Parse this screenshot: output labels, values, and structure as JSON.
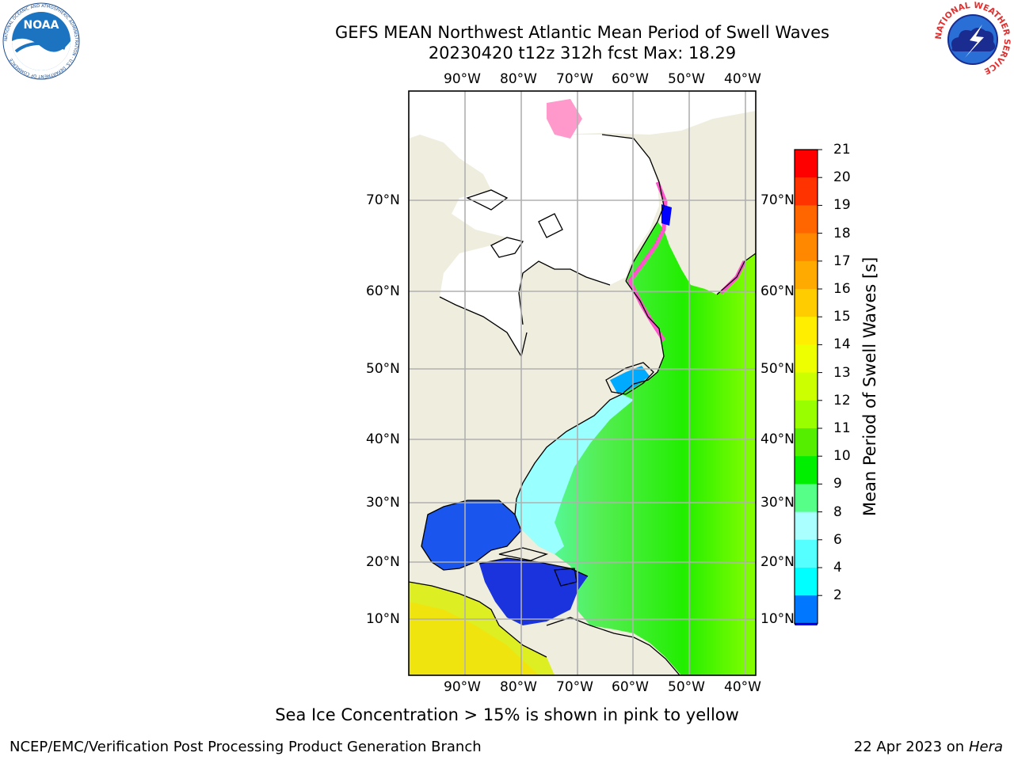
{
  "title": {
    "line1": "GEFS MEAN Northwest Atlantic Mean Period of Swell Waves",
    "line2": "20230420 t12z 312h fcst   Max: 18.29"
  },
  "map": {
    "lon_labels": [
      "90°W",
      "80°W",
      "70°W",
      "60°W",
      "50°W",
      "40°W"
    ],
    "lat_labels": [
      "70°N",
      "60°N",
      "50°N",
      "40°N",
      "30°N",
      "20°N",
      "10°N"
    ],
    "colors": {
      "land": "#efedde",
      "ice": "#ff66cc",
      "frame": "#000000",
      "grid": "#b0b0b0"
    }
  },
  "colorbar": {
    "title": "Mean Period of Swell Waves [s]",
    "labels": [
      "21",
      "20",
      "19",
      "18",
      "17",
      "16",
      "15",
      "14",
      "13",
      "12",
      "11",
      "10",
      "9",
      "8",
      "6",
      "4",
      "2"
    ],
    "colors": [
      "#ff0000",
      "#ff3300",
      "#ff6600",
      "#ff8800",
      "#ffaa00",
      "#ffcc00",
      "#ffee00",
      "#eeff00",
      "#ccff00",
      "#99ff00",
      "#55ee00",
      "#00ee00",
      "#55ff88",
      "#aaffff",
      "#55ffff",
      "#00ffff",
      "#0077ff"
    ],
    "under_color": "#0000ff"
  },
  "footer": {
    "note": "Sea Ice Concentration > 15% is shown in pink to yellow",
    "credit": "NCEP/EMC/Verification Post Processing Product Generation Branch",
    "date": "22 Apr 2023 on ",
    "host": "Hera"
  },
  "logos": {
    "noaa_text": "NOAA",
    "noaa_ring": "NATIONAL OCEANIC AND ATMOSPHERIC ADMINISTRATION · U.S. DEPARTMENT OF COMMERCE",
    "nws_ring": "NATIONAL WEATHER SERVICE"
  }
}
